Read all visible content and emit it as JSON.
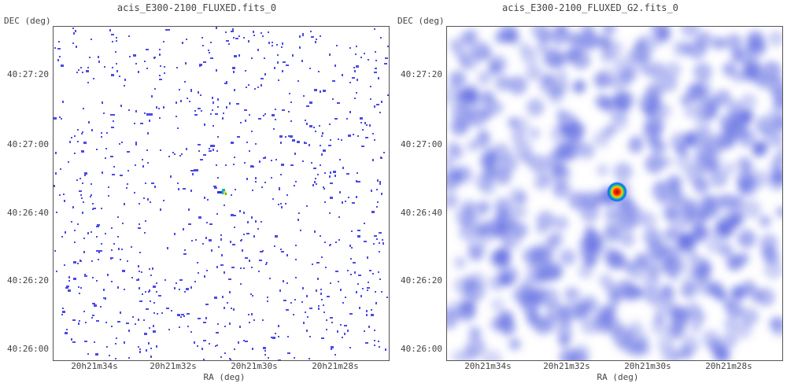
{
  "panels": [
    {
      "title": "acis_E300-2100_FLUXED.fits_0",
      "ylabel": "DEC (deg)",
      "xlabel": "RA (deg)",
      "yticks": [
        "40:27:20",
        "40:27:00",
        "40:26:40",
        "40:26:20",
        "40:26:00"
      ],
      "xticks": [
        "20h21m34s",
        "20h21m32s",
        "20h21m30s",
        "20h21m28s"
      ],
      "style": "sparse-pixels"
    },
    {
      "title": "acis_E300-2100_FLUXED_G2.fits_0",
      "ylabel": "DEC (deg)",
      "xlabel": "RA (deg)",
      "yticks": [
        "40:27:20",
        "40:27:00",
        "40:26:40",
        "40:26:20",
        "40:26:00"
      ],
      "xticks": [
        "20h21m34s",
        "20h21m32s",
        "20h21m30s",
        "20h21m28s"
      ],
      "style": "smoothed"
    }
  ],
  "colors": {
    "pixel": "#4a4ae6",
    "smooth": "#5a66e0",
    "source_core": "#d81c00",
    "source_mid": "#ffd600",
    "source_outer": "#00b4c8"
  }
}
